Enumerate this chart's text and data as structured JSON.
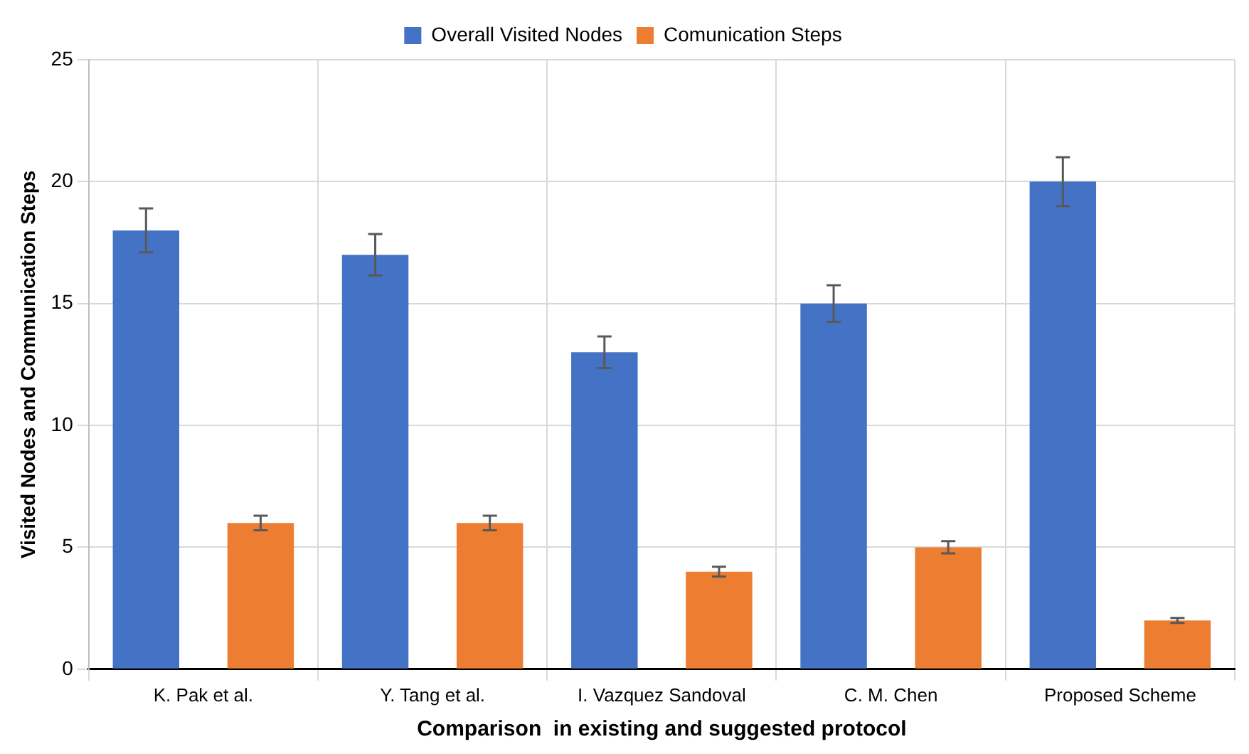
{
  "chart_data": {
    "type": "bar",
    "xlabel": "Comparison  in existing and suggested protocol",
    "ylabel": "Visited Nodes and Communication Steps",
    "categories": [
      "K. Pak et al.",
      "Y. Tang et al.",
      "I. Vazquez Sandoval",
      "C. M. Chen",
      "Proposed Scheme"
    ],
    "series": [
      {
        "name": "Overall Visited Nodes",
        "color": "#4472c4",
        "values": [
          18,
          17,
          13,
          15,
          20
        ],
        "errors": [
          0.9,
          0.85,
          0.65,
          0.75,
          1.0
        ]
      },
      {
        "name": "Comunication Steps",
        "color": "#ed7d31",
        "values": [
          6,
          6,
          4,
          5,
          2
        ],
        "errors": [
          0.3,
          0.3,
          0.2,
          0.25,
          0.1
        ]
      }
    ],
    "ylim": [
      0,
      25
    ],
    "yticks": [
      0,
      5,
      10,
      15,
      20,
      25
    ],
    "grid": true,
    "legend": "top"
  }
}
